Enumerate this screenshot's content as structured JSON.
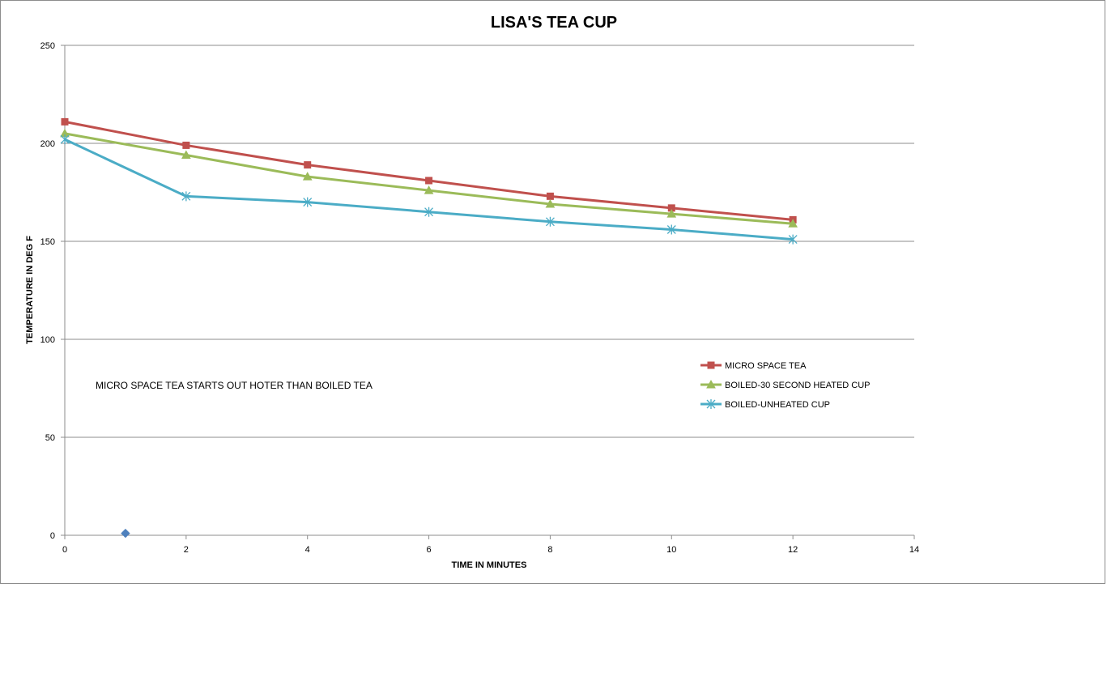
{
  "chart_data": {
    "type": "line",
    "title": "LISA'S TEA CUP",
    "xlabel": "TIME IN MINUTES",
    "ylabel": "TEMPERATURE  IN DEG F",
    "xlim": [
      0,
      14
    ],
    "ylim": [
      0,
      250
    ],
    "xticks": [
      0,
      2,
      4,
      6,
      8,
      10,
      12,
      14
    ],
    "yticks": [
      0,
      50,
      100,
      150,
      200,
      250
    ],
    "grid": "horizontal",
    "legend_position": "right",
    "annotation": "MICRO SPACE TEA STARTS OUT  HOTER THAN BOILED TEA",
    "series": [
      {
        "name": "MICRO SPACE TEA",
        "color": "#C0504D",
        "marker": "square",
        "x": [
          0,
          2,
          4,
          6,
          8,
          10,
          12
        ],
        "values": [
          211,
          199,
          189,
          181,
          173,
          167,
          161
        ]
      },
      {
        "name": "BOILED-30 SECOND HEATED CUP",
        "color": "#9BBB59",
        "marker": "triangle",
        "x": [
          0,
          2,
          4,
          6,
          8,
          10,
          12
        ],
        "values": [
          205,
          194,
          183,
          176,
          169,
          164,
          159
        ]
      },
      {
        "name": "BOILED-UNHEATED CUP",
        "color": "#4BACC6",
        "marker": "star",
        "x": [
          0,
          2,
          4,
          6,
          8,
          10,
          12
        ],
        "values": [
          202,
          173,
          170,
          165,
          160,
          156,
          151
        ]
      }
    ],
    "extra_points": [
      {
        "color": "#4F81BD",
        "marker": "diamond",
        "x": 1,
        "y": 1
      }
    ]
  }
}
